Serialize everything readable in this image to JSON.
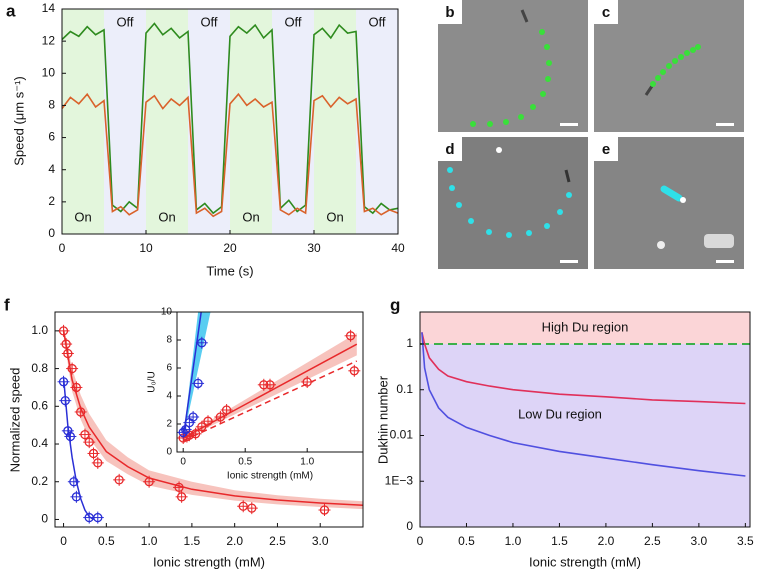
{
  "images": [
    {
      "label": "b"
    },
    {
      "label": "c"
    },
    {
      "label": "d"
    },
    {
      "label": "e"
    }
  ],
  "chart_data": [
    {
      "type": "line",
      "panel": "a",
      "xlabel": "Time (s)",
      "ylabel": "Speed (μm s⁻¹)",
      "xlim": [
        0,
        40
      ],
      "ylim": [
        0,
        14
      ],
      "xticks": [
        0,
        10,
        20,
        30,
        40
      ],
      "yticks": [
        0,
        2,
        4,
        6,
        8,
        10,
        12,
        14
      ],
      "regions": [
        {
          "label": "On",
          "start": 0,
          "end": 5,
          "color": "#e3f6dc"
        },
        {
          "label": "Off",
          "start": 5,
          "end": 10,
          "color": "#eceefa"
        },
        {
          "label": "On",
          "start": 10,
          "end": 15,
          "color": "#e3f6dc"
        },
        {
          "label": "Off",
          "start": 15,
          "end": 20,
          "color": "#eceefa"
        },
        {
          "label": "On",
          "start": 20,
          "end": 25,
          "color": "#e3f6dc"
        },
        {
          "label": "Off",
          "start": 25,
          "end": 30,
          "color": "#eceefa"
        },
        {
          "label": "On",
          "start": 30,
          "end": 35,
          "color": "#e3f6dc"
        },
        {
          "label": "Off",
          "start": 35,
          "end": 40,
          "color": "#eceefa"
        }
      ],
      "x": [
        0,
        1,
        2,
        3,
        4,
        5,
        6,
        7,
        8,
        9,
        10,
        11,
        12,
        13,
        14,
        15,
        16,
        17,
        18,
        19,
        20,
        21,
        22,
        23,
        24,
        25,
        26,
        27,
        28,
        29,
        30,
        31,
        32,
        33,
        34,
        35,
        36,
        37,
        38,
        39,
        40
      ],
      "series": [
        {
          "color": "#2e8b1e",
          "values": [
            12.1,
            12.6,
            12.3,
            12.9,
            12.4,
            12.7,
            1.8,
            1.4,
            2.0,
            1.6,
            12.5,
            13.1,
            12.4,
            12.8,
            12.2,
            12.6,
            1.5,
            1.9,
            1.3,
            1.7,
            12.3,
            12.9,
            12.5,
            13.0,
            12.2,
            12.7,
            1.6,
            2.1,
            1.4,
            1.8,
            12.4,
            12.8,
            12.2,
            13.0,
            12.5,
            12.6,
            1.7,
            1.3,
            1.9,
            1.5,
            1.6
          ]
        },
        {
          "color": "#d9622b",
          "values": [
            7.8,
            8.5,
            8.1,
            8.7,
            7.9,
            8.3,
            1.4,
            1.7,
            1.2,
            1.5,
            8.2,
            8.6,
            7.8,
            8.4,
            8.0,
            8.5,
            1.3,
            1.6,
            1.1,
            1.4,
            8.1,
            8.7,
            8.0,
            8.4,
            7.9,
            8.2,
            1.5,
            1.2,
            1.6,
            1.3,
            8.3,
            8.6,
            7.9,
            8.5,
            8.1,
            8.4,
            1.4,
            1.6,
            1.2,
            1.5,
            1.3
          ]
        }
      ]
    },
    {
      "type": "scatter",
      "panel": "f",
      "xlabel": "Ionic strength (mM)",
      "ylabel": "Normalized speed",
      "xlim": [
        -0.1,
        3.5
      ],
      "ylim": [
        -0.04,
        1.1
      ],
      "xticks": [
        0,
        0.5,
        {
          "value": 1,
          "label": "1.0"
        },
        1.5,
        {
          "value": 2,
          "label": "2.0"
        },
        2.5,
        {
          "value": 3,
          "label": "3.0"
        }
      ],
      "yticks": [
        0,
        0.2,
        0.4,
        0.6,
        0.8,
        {
          "value": 1,
          "label": "1.0"
        }
      ],
      "fits": [
        {
          "color": "#e8292b",
          "x": [
            0,
            0.1,
            0.2,
            0.3,
            0.5,
            0.75,
            1,
            1.5,
            2,
            2.5,
            3,
            3.5
          ],
          "values": [
            1,
            0.74,
            0.59,
            0.49,
            0.36,
            0.28,
            0.22,
            0.16,
            0.125,
            0.103,
            0.087,
            0.075
          ],
          "band": {
            "color": "#f6b9b2",
            "x": [
              0,
              0.1,
              0.2,
              0.3,
              0.5,
              0.75,
              1,
              1.5,
              2,
              2.5,
              3,
              3.5
            ],
            "lower": [
              0.97,
              0.68,
              0.53,
              0.43,
              0.31,
              0.24,
              0.18,
              0.13,
              0.1,
              0.08,
              0.066,
              0.055
            ],
            "upper": [
              1.03,
              0.8,
              0.66,
              0.56,
              0.42,
              0.33,
              0.26,
              0.2,
              0.155,
              0.128,
              0.11,
              0.097
            ]
          }
        },
        {
          "color": "#2a2fd6",
          "x": [
            0,
            0.05,
            0.1,
            0.15,
            0.2,
            0.25,
            0.3,
            0.35
          ],
          "values": [
            0.75,
            0.5,
            0.33,
            0.2,
            0.11,
            0.05,
            0.015,
            0
          ]
        }
      ],
      "series": [
        {
          "color": "#e8292b",
          "x": [
            0,
            0.03,
            0.05,
            0.1,
            0.15,
            0.2,
            0.25,
            0.3,
            0.35,
            0.4,
            0.65,
            1.0,
            1.35,
            1.38,
            2.1,
            2.2,
            3.05
          ],
          "values": [
            1.0,
            0.93,
            0.88,
            0.8,
            0.7,
            0.57,
            0.45,
            0.41,
            0.35,
            0.3,
            0.21,
            0.2,
            0.17,
            0.12,
            0.07,
            0.06,
            0.05
          ]
        },
        {
          "color": "#2a2fd6",
          "x": [
            0,
            0.02,
            0.05,
            0.08,
            0.12,
            0.15,
            0.3,
            0.4
          ],
          "values": [
            0.73,
            0.63,
            0.47,
            0.44,
            0.2,
            0.12,
            0.01,
            0.01
          ]
        }
      ]
    },
    {
      "type": "scatter",
      "xlabel": "Ionic strength (mM)",
      "ylabel": "U₀/U",
      "xlim": [
        -0.05,
        1.45
      ],
      "ylim": [
        0,
        10
      ],
      "xticks": [
        0,
        0.5,
        {
          "value": 1,
          "label": "1.0"
        }
      ],
      "yticks": [
        0,
        2,
        4,
        6,
        8,
        10
      ],
      "fits": [
        {
          "color": "#e8292b",
          "x": [
            0,
            1.4
          ],
          "values": [
            1,
            7.7
          ],
          "band": {
            "color": "#f6b9b2",
            "x": [
              0,
              1.4
            ],
            "lower": [
              0.9,
              6.9
            ],
            "upper": [
              1.1,
              8.5
            ]
          }
        },
        {
          "color": "#e8292b",
          "dashed": true,
          "x": [
            0,
            1.4
          ],
          "values": [
            0.8,
            6.5
          ]
        },
        {
          "color": "#2a2fd6",
          "x": [
            0,
            0.145
          ],
          "values": [
            1,
            10
          ],
          "band": {
            "color": "#3cc4ee",
            "x": [
              0,
              0.12,
              0.22
            ],
            "lower": [
              1,
              5.9,
              10
            ],
            "upper": [
              1,
              10,
              10
            ]
          }
        }
      ],
      "series": [
        {
          "color": "#e8292b",
          "x": [
            0,
            0.03,
            0.05,
            0.1,
            0.15,
            0.2,
            0.3,
            0.35,
            0.65,
            0.7,
            1.0,
            1.35,
            1.38
          ],
          "values": [
            1,
            1.1,
            1.2,
            1.3,
            1.8,
            2.2,
            2.5,
            3.0,
            4.8,
            4.8,
            5.0,
            8.3,
            5.8
          ]
        },
        {
          "color": "#2a2fd6",
          "x": [
            0,
            0.02,
            0.05,
            0.08,
            0.12,
            0.15
          ],
          "values": [
            1.4,
            1.6,
            2.1,
            2.5,
            4.9,
            7.8
          ]
        }
      ]
    },
    {
      "type": "line",
      "panel": "g",
      "xlabel": "Ionic strength (mM)",
      "ylabel": "Dukhin number",
      "log_y": true,
      "xlim": [
        0,
        3.55
      ],
      "ylim": [
        0.0001,
        5
      ],
      "xticks": [
        0,
        0.5,
        {
          "value": 1,
          "label": "1.0"
        },
        1.5,
        {
          "value": 2,
          "label": "2.0"
        },
        2.5,
        {
          "value": 3,
          "label": "3.0"
        },
        3.5
      ],
      "yticks": [
        {
          "value": 0.0001,
          "label": "0"
        },
        {
          "value": 0.001,
          "label": "1E−3"
        },
        0.01,
        0.1,
        1
      ],
      "threshold": 1,
      "threshold_color": "#3cb04a",
      "high_label": "High Du region",
      "high_color": "#fbd5d7",
      "low_label": "Low Du region",
      "low_color": "#ddd4f7",
      "x": [
        0.02,
        0.05,
        0.1,
        0.2,
        0.3,
        0.5,
        0.75,
        1,
        1.5,
        2,
        2.5,
        3,
        3.5
      ],
      "series": [
        {
          "color": "#e0305a",
          "values": [
            1.8,
            1.0,
            0.5,
            0.28,
            0.2,
            0.15,
            0.12,
            0.1,
            0.08,
            0.07,
            0.06,
            0.055,
            0.05
          ]
        },
        {
          "color": "#5050e0",
          "values": [
            1.8,
            0.3,
            0.1,
            0.04,
            0.025,
            0.015,
            0.01,
            0.007,
            0.0045,
            0.0032,
            0.0023,
            0.0017,
            0.0013
          ]
        }
      ]
    }
  ]
}
